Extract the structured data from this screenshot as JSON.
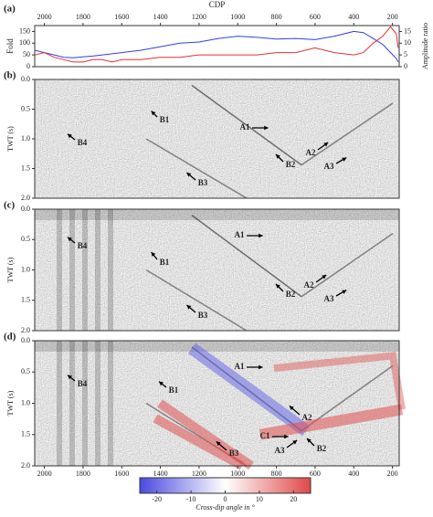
{
  "chart_data": [
    {
      "type": "line",
      "panel": "(a)",
      "xlabel": "CDP",
      "ylabel": "Fold",
      "y2label": "Amplitude ratio",
      "x": [
        2050,
        2000,
        1950,
        1900,
        1850,
        1800,
        1750,
        1700,
        1650,
        1600,
        1550,
        1500,
        1400,
        1300,
        1200,
        1100,
        1000,
        900,
        800,
        700,
        600,
        500,
        400,
        350,
        300,
        250,
        210,
        180,
        170
      ],
      "xlim": [
        2050,
        165
      ],
      "xticks": [
        2000,
        1800,
        1600,
        1400,
        1200,
        1000,
        800,
        600,
        400,
        200
      ],
      "ylim": [
        0,
        175
      ],
      "yticks": [
        0,
        50,
        100,
        150
      ],
      "y2lim": [
        0,
        17.5
      ],
      "y2ticks": [
        0,
        5,
        10,
        15
      ],
      "series": [
        {
          "name": "Fold",
          "color": "#3040e8",
          "values": [
            70,
            60,
            50,
            40,
            38,
            42,
            45,
            50,
            55,
            60,
            65,
            70,
            85,
            100,
            105,
            120,
            130,
            125,
            118,
            120,
            115,
            130,
            150,
            145,
            120,
            95,
            60,
            35,
            20
          ]
        },
        {
          "name": "Amplitude ratio",
          "color": "#e83030",
          "axis": "y2",
          "values": [
            5,
            6,
            4,
            3,
            2,
            2,
            3,
            3,
            2,
            3,
            3,
            3,
            4,
            4,
            5,
            5,
            5,
            5,
            6,
            6,
            8,
            6,
            5,
            6,
            10,
            13,
            17,
            14,
            8
          ]
        }
      ]
    },
    {
      "type": "image",
      "panel": "(b)",
      "ylabel": "TWT (s)",
      "xlim": [
        2050,
        165
      ],
      "ylim": [
        0,
        2
      ],
      "yticks": [
        {
          "value": 0,
          "label": "0.0"
        },
        0.5,
        {
          "value": 1,
          "label": "1.0"
        },
        1.5,
        {
          "value": 2,
          "label": "2.0"
        }
      ],
      "annotations": [
        "A1",
        "B4",
        "B1",
        "A2",
        "B2",
        "A3",
        "B3"
      ]
    },
    {
      "type": "image",
      "panel": "(c)",
      "ylabel": "TWT (s)",
      "xlim": [
        2050,
        165
      ],
      "ylim": [
        0,
        2
      ],
      "yticks": [
        {
          "value": 0,
          "label": "0.0"
        },
        0.5,
        {
          "value": 1,
          "label": "1.0"
        },
        1.5,
        {
          "value": 2,
          "label": "2.0"
        }
      ],
      "annotations": [
        "A1",
        "B4",
        "B1",
        "A2",
        "B2",
        "A3",
        "B3"
      ]
    },
    {
      "type": "image",
      "panel": "(d)",
      "ylabel": "TWT (s)",
      "xlim": [
        2050,
        165
      ],
      "ylim": [
        0,
        2
      ],
      "xticks": [
        2000,
        1800,
        1600,
        1400,
        1200,
        1000,
        800,
        600,
        400,
        200
      ],
      "yticks": [
        {
          "value": 0,
          "label": "0.0"
        },
        0.5,
        {
          "value": 1,
          "label": "1.0"
        },
        1.5,
        {
          "value": 2,
          "label": "2.0"
        }
      ],
      "annotations": [
        "A1",
        "B4",
        "B1",
        "A2",
        "C1",
        "B2",
        "A3",
        "B3"
      ]
    },
    {
      "type": "colorbar",
      "label": "Cross-dip angle in °",
      "clim": [
        -25,
        25
      ],
      "ticks": [
        -20,
        -10,
        0,
        10,
        20
      ]
    }
  ]
}
